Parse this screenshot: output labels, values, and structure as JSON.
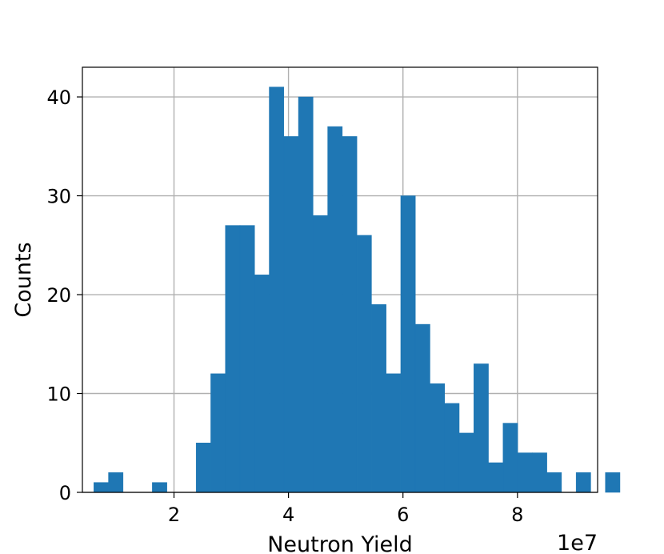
{
  "chart_data": {
    "type": "bar",
    "title": "",
    "xlabel": "Neutron Yield",
    "ylabel": "Counts",
    "x_offset_label": "1e7",
    "xlim": [
      0.4,
      9.4
    ],
    "ylim": [
      0,
      43
    ],
    "x_ticks": [
      2,
      4,
      6,
      8
    ],
    "y_ticks": [
      0,
      10,
      20,
      30,
      40
    ],
    "grid": true,
    "bar_color": "#1f77b4",
    "bin_start": 0.6,
    "bin_width": 0.2553,
    "values": [
      1,
      2,
      0,
      0,
      1,
      0,
      0,
      5,
      12,
      27,
      27,
      22,
      41,
      36,
      40,
      28,
      37,
      36,
      26,
      19,
      12,
      30,
      17,
      11,
      9,
      6,
      13,
      3,
      7,
      4,
      4,
      2,
      0,
      2,
      0,
      2
    ]
  }
}
